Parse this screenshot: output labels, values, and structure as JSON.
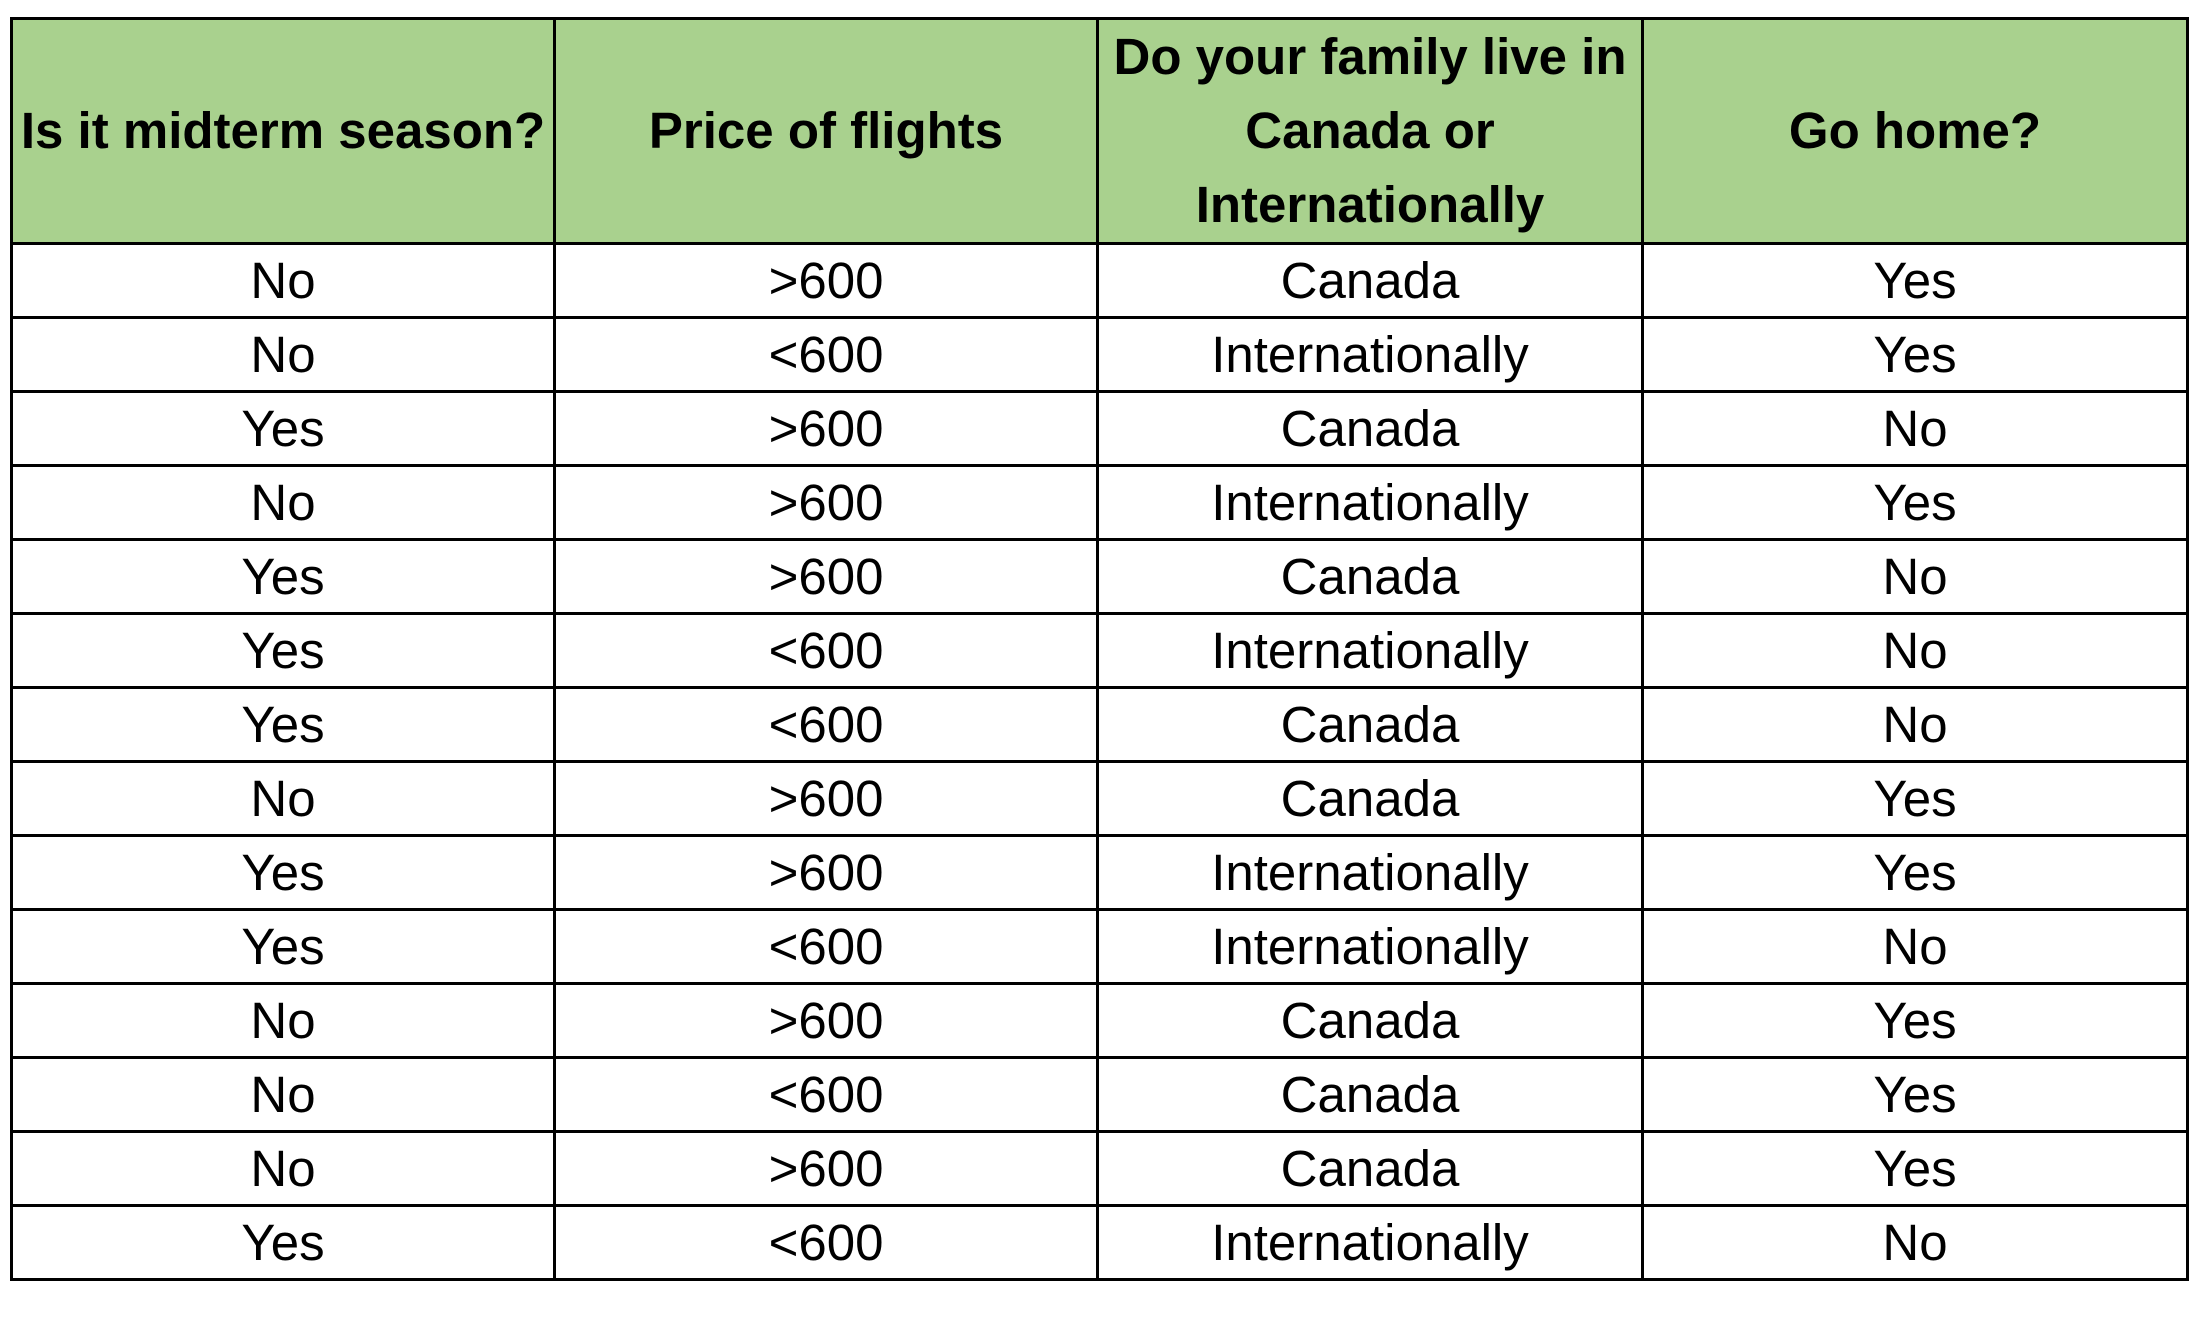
{
  "table": {
    "header_bg": "#a9d18e",
    "columns": [
      "Is it midterm season?",
      "Price of flights",
      "Do your family live in Canada or Internationally",
      "Go home?"
    ],
    "rows": [
      [
        "No",
        ">600",
        "Canada",
        "Yes"
      ],
      [
        "No",
        "<600",
        "Internationally",
        "Yes"
      ],
      [
        "Yes",
        ">600",
        "Canada",
        "No"
      ],
      [
        "No",
        ">600",
        "Internationally",
        "Yes"
      ],
      [
        "Yes",
        ">600",
        "Canada",
        "No"
      ],
      [
        "Yes",
        "<600",
        "Internationally",
        "No"
      ],
      [
        "Yes",
        "<600",
        "Canada",
        "No"
      ],
      [
        "No",
        ">600",
        "Canada",
        "Yes"
      ],
      [
        "Yes",
        ">600",
        "Internationally",
        "Yes"
      ],
      [
        "Yes",
        "<600",
        "Internationally",
        "No"
      ],
      [
        "No",
        ">600",
        "Canada",
        "Yes"
      ],
      [
        "No",
        "<600",
        "Canada",
        "Yes"
      ],
      [
        "No",
        ">600",
        "Canada",
        "Yes"
      ],
      [
        "Yes",
        "<600",
        "Internationally",
        "No"
      ]
    ]
  }
}
